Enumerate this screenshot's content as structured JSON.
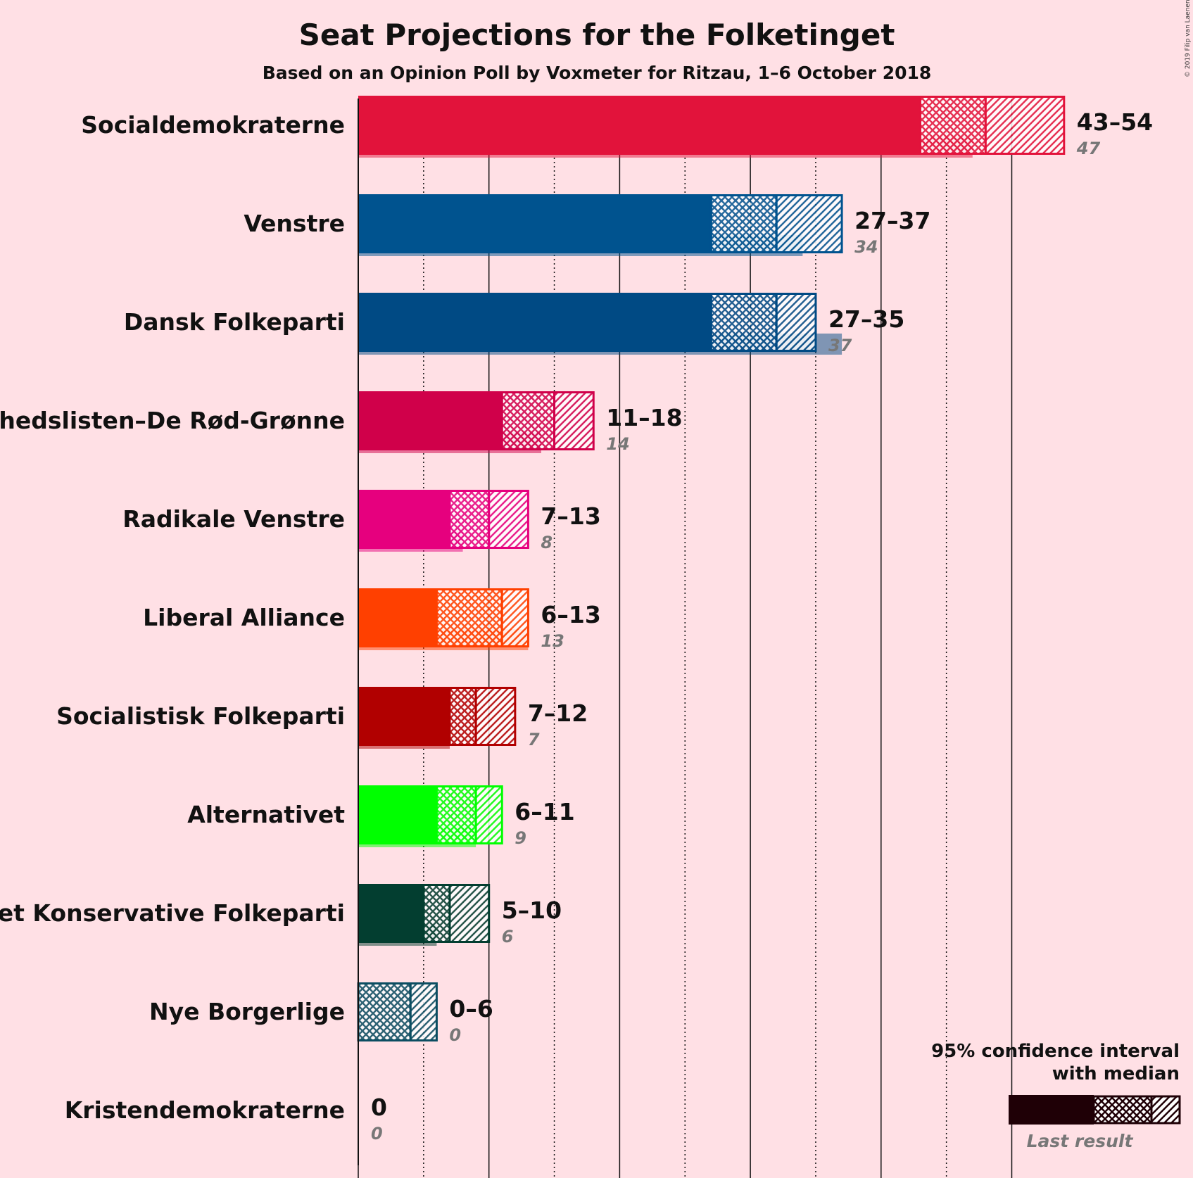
{
  "copyright": "© 2019 Filip van Laenen",
  "chart_data": {
    "type": "bar",
    "title": "Seat Projections for the Folketinget",
    "subtitle": "Based on an Opinion Poll by Voxmeter for Ritzau, 1–6 October 2018",
    "legend": {
      "title_line1": "95% confidence interval",
      "title_line2": "with median",
      "last_result": "Last result",
      "placement": "bottom-right"
    },
    "xlim": [
      0,
      54
    ],
    "gridlines_solid": [
      0,
      10,
      20,
      30,
      40,
      50
    ],
    "gridlines_dotted": [
      5,
      15,
      25,
      35,
      45
    ],
    "parties": [
      {
        "name": "Socialdemokraterne",
        "color": "#e2133b",
        "low": 43,
        "median": 48,
        "high": 54,
        "range_label": "43–54",
        "last": 47,
        "last_label": "47"
      },
      {
        "name": "Venstre",
        "color": "#00538f",
        "low": 27,
        "median": 32,
        "high": 37,
        "range_label": "27–37",
        "last": 34,
        "last_label": "34"
      },
      {
        "name": "Dansk Folkeparti",
        "color": "#004a84",
        "low": 27,
        "median": 32,
        "high": 35,
        "range_label": "27–35",
        "last": 37,
        "last_label": "37"
      },
      {
        "name": "Enhedslisten–De Rød-Grønne",
        "color": "#d0004a",
        "low": 11,
        "median": 15,
        "high": 18,
        "range_label": "11–18",
        "last": 14,
        "last_label": "14"
      },
      {
        "name": "Radikale Venstre",
        "color": "#e6007e",
        "low": 7,
        "median": 10,
        "high": 13,
        "range_label": "7–13",
        "last": 8,
        "last_label": "8"
      },
      {
        "name": "Liberal Alliance",
        "color": "#ff4000",
        "low": 6,
        "median": 11,
        "high": 13,
        "range_label": "6–13",
        "last": 13,
        "last_label": "13"
      },
      {
        "name": "Socialistisk Folkeparti",
        "color": "#b10000",
        "low": 7,
        "median": 9,
        "high": 12,
        "range_label": "7–12",
        "last": 7,
        "last_label": "7"
      },
      {
        "name": "Alternativet",
        "color": "#00ff00",
        "low": 6,
        "median": 9,
        "high": 11,
        "range_label": "6–11",
        "last": 9,
        "last_label": "9"
      },
      {
        "name": "Det Konservative Folkeparti",
        "color": "#033e30",
        "low": 5,
        "median": 7,
        "high": 10,
        "range_label": "5–10",
        "last": 6,
        "last_label": "6"
      },
      {
        "name": "Nye Borgerlige",
        "color": "#0b4d61",
        "low": 0,
        "median": 4,
        "high": 6,
        "range_label": "0–6",
        "last": 0,
        "last_label": "0"
      },
      {
        "name": "Kristendemokraterne",
        "color": "#777777",
        "low": 0,
        "median": 0,
        "high": 0,
        "range_label": "0",
        "last": 0,
        "last_label": "0"
      }
    ]
  }
}
